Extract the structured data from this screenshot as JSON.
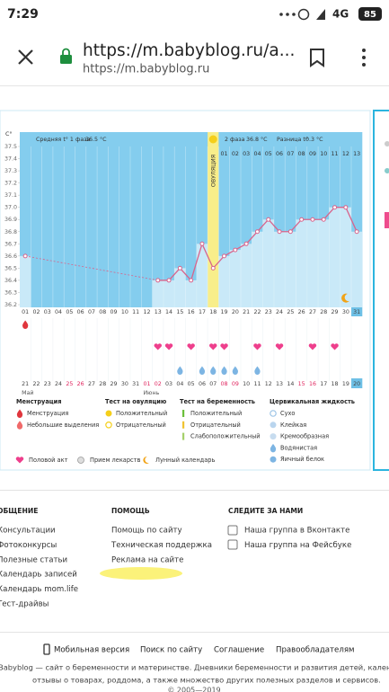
{
  "status_bar": {
    "time": "7:29",
    "network": "4G",
    "battery": "85"
  },
  "browser": {
    "url_title": "https://m.babyblog.ru/a...",
    "url": "https://m.babyblog.ru"
  },
  "chart_data": {
    "type": "line",
    "y_label": "С°",
    "phase1_label": "Средняя t° 1 фаза",
    "phase1_value": "36.5 °C",
    "ovulation_label": "ОВУЛЯЦИЯ",
    "phase2_label": "2 фаза",
    "phase2_value": "36.8 °C",
    "diff_label": "Разница t°",
    "diff_value": "0.3 °C",
    "phase2_days": [
      "01",
      "02",
      "03",
      "04",
      "05",
      "06",
      "07",
      "08",
      "09",
      "10",
      "11",
      "12",
      "13"
    ],
    "categories": [
      "01",
      "02",
      "03",
      "04",
      "05",
      "06",
      "07",
      "08",
      "09",
      "10",
      "11",
      "12",
      "13",
      "14",
      "15",
      "16",
      "17",
      "18",
      "19",
      "20",
      "21",
      "22",
      "23",
      "24",
      "25",
      "26",
      "27",
      "28",
      "29",
      "30",
      "31"
    ],
    "dates": [
      "21",
      "22",
      "23",
      "24",
      "25",
      "26",
      "27",
      "28",
      "29",
      "30",
      "31",
      "01",
      "02",
      "03",
      "04",
      "05",
      "06",
      "07",
      "08",
      "09",
      "10",
      "11",
      "12",
      "13",
      "14",
      "15",
      "16",
      "17",
      "18",
      "19",
      "20"
    ],
    "months": [
      {
        "label": "Май",
        "at": "21"
      },
      {
        "label": "Июнь",
        "at": "01"
      }
    ],
    "values": [
      36.6,
      null,
      null,
      null,
      null,
      null,
      null,
      null,
      null,
      null,
      null,
      null,
      36.4,
      36.4,
      36.5,
      36.4,
      36.7,
      36.5,
      36.6,
      36.65,
      36.7,
      36.8,
      36.9,
      36.8,
      36.8,
      36.9,
      36.9,
      36.9,
      37.0,
      37.0,
      36.8
    ],
    "color": "#d8648c",
    "ylim": [
      36.2,
      37.5
    ],
    "yticks": [
      36.2,
      36.3,
      36.4,
      36.5,
      36.6,
      36.7,
      36.8,
      36.9,
      {
        "value": 37,
        "label": "37.0"
      },
      37.1,
      37.2,
      37.3,
      37.4,
      37.5
    ],
    "ovulation_day": "18",
    "today": "31",
    "today_date": "20",
    "holidays": [
      "25",
      "26",
      "01",
      "02",
      "08",
      "09",
      "15",
      "16"
    ],
    "menstruation_days": [
      "01"
    ],
    "intercourse_days": [
      "13",
      "14",
      "16",
      "18",
      "19",
      "22",
      "24",
      "27",
      "29"
    ],
    "cervical_days": [
      "15",
      "17",
      "18",
      "19",
      "20",
      "22"
    ],
    "moon_days": [
      "30"
    ]
  },
  "legend": {
    "groups": [
      {
        "title": "Менструация",
        "items": [
          "Менструация",
          "Небольшие выделения"
        ]
      },
      {
        "title": "Тест на овуляцию",
        "items": [
          "Положительный",
          "Отрицательный"
        ]
      },
      {
        "title": "Тест на беременность",
        "items": [
          "Положительный",
          "Отрицательный",
          "Слабоположительный"
        ]
      },
      {
        "title": "Цервикальная жидкость",
        "items": [
          "Сухо",
          "Клейкая",
          "Кремообразная",
          "Водянистая",
          "Яичный белок"
        ]
      }
    ],
    "extra": [
      "Половой акт",
      "Прием лекарств",
      "Лунный календарь"
    ]
  },
  "footer": {
    "columns": [
      {
        "title": "ОБЩЕНИЕ",
        "links": [
          "Консультации",
          "Фотоконкурсы",
          "Полезные статьи",
          "Календарь записей",
          "Календарь mom.life",
          "Тест-драйвы"
        ]
      },
      {
        "title": "ПОМОЩЬ",
        "links": [
          "Помощь по сайту",
          "Техническая поддержка",
          "Реклама на сайте"
        ]
      },
      {
        "title": "СЛЕДИТЕ ЗА НАМИ",
        "links": [
          "Наша группа в Вконтакте",
          "Наша группа на Фейсбуке"
        ]
      }
    ],
    "bottom_links": [
      "Мобильная версия",
      "Поиск по сайту",
      "Соглашение",
      "Правообладателям"
    ],
    "description": [
      "Babyblog — сайт о беременности и материнстве. Дневники беременности и развития детей, календарь беременности,",
      "отзывы о товарах, роддома, а также множество других полезных разделов и сервисов."
    ],
    "copyright": "© 2005—2019"
  }
}
